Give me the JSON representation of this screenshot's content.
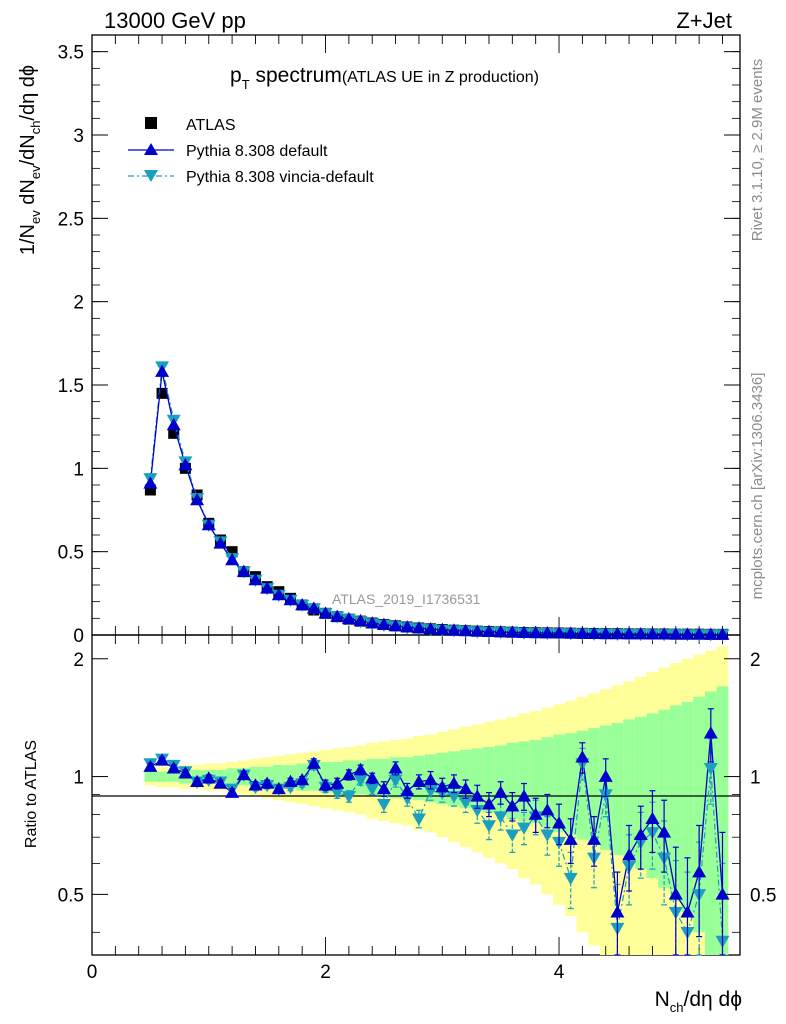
{
  "chart_data": [
    {
      "type": "scatter",
      "panel": "main",
      "header_left": "13000 GeV pp",
      "header_right": "Z+Jet",
      "title_main": "p",
      "title_sub": "T",
      "title_word": " spectrum",
      "title_paren": "(ATLAS UE in Z production)",
      "ylabel": "1/N_ev dN_ev/dN_ch/dη dϕ",
      "ylabel_parts": [
        "1/N",
        "ev",
        " dN",
        "ev",
        "/dN",
        "ch",
        "/dη dϕ"
      ],
      "ylim": [
        0,
        3.6
      ],
      "y_ticks": [
        "0",
        "0.5",
        "1",
        "1.5",
        "2",
        "2.5",
        "3",
        "3.5"
      ],
      "y_tick_values": [
        0,
        0.5,
        1,
        1.5,
        2,
        2.5,
        3,
        3.5
      ],
      "xlim": [
        0,
        5.55
      ],
      "analysis_label": "ATLAS_2019_I1736531",
      "right_label_top": "Rivet 3.1.10, ≥ 2.9M events",
      "right_label_bottom": "mcplots.cern.ch [arXiv:1306.3436]",
      "legend": [
        {
          "name": "ATLAS",
          "marker": "square",
          "color": "#000000"
        },
        {
          "name": "Pythia 8.308 default",
          "marker": "triangle-up",
          "color": "#0000cc"
        },
        {
          "name": "Pythia 8.308 vincia-default",
          "marker": "triangle-down",
          "color": "#1a9fbf"
        }
      ],
      "x": [
        0.5,
        0.6,
        0.7,
        0.8,
        0.9,
        1.0,
        1.1,
        1.2,
        1.3,
        1.4,
        1.5,
        1.6,
        1.7,
        1.8,
        1.9,
        2.0,
        2.1,
        2.2,
        2.3,
        2.4,
        2.5,
        2.6,
        2.7,
        2.8,
        2.9,
        3.0,
        3.1,
        3.2,
        3.3,
        3.4,
        3.5,
        3.6,
        3.7,
        3.8,
        3.9,
        4.0,
        4.1,
        4.2,
        4.3,
        4.4,
        4.5,
        4.6,
        4.7,
        4.8,
        4.9,
        5.0,
        5.1,
        5.2,
        5.3,
        5.4
      ],
      "series": [
        {
          "name": "ATLAS",
          "values": [
            0.87,
            1.45,
            1.21,
            1.0,
            0.84,
            0.67,
            0.57,
            0.5,
            0.38,
            0.35,
            0.29,
            0.26,
            0.22,
            0.18,
            0.15,
            0.13,
            0.11,
            0.095,
            0.083,
            0.072,
            0.063,
            0.055,
            0.048,
            0.042,
            0.037,
            0.033,
            0.029,
            0.026,
            0.023,
            0.021,
            0.019,
            0.017,
            0.015,
            0.014,
            0.013,
            0.012,
            0.011,
            0.01,
            0.009,
            0.008,
            0.008,
            0.007,
            0.007,
            0.006,
            0.006,
            0.005,
            0.005,
            0.005,
            0.004,
            0.004
          ]
        },
        {
          "name": "Pythia 8.308 default",
          "values": [
            0.91,
            1.58,
            1.26,
            1.02,
            0.81,
            0.66,
            0.55,
            0.45,
            0.38,
            0.33,
            0.28,
            0.24,
            0.21,
            0.18,
            0.16,
            0.13,
            0.11,
            0.097,
            0.085,
            0.071,
            0.062,
            0.054,
            0.047,
            0.041,
            0.036,
            0.032,
            0.028,
            0.025,
            0.022,
            0.02,
            0.018,
            0.016,
            0.014,
            0.013,
            0.012,
            0.011,
            0.01,
            0.009,
            0.008,
            0.007,
            0.007,
            0.006,
            0.006,
            0.005,
            0.005,
            0.004,
            0.004,
            0.004,
            0.003,
            0.003
          ]
        },
        {
          "name": "Pythia 8.308 vincia-default",
          "values": [
            0.94,
            1.61,
            1.29,
            1.04,
            0.82,
            0.66,
            0.56,
            0.46,
            0.38,
            0.33,
            0.28,
            0.24,
            0.21,
            0.18,
            0.16,
            0.13,
            0.11,
            0.095,
            0.082,
            0.069,
            0.06,
            0.052,
            0.045,
            0.039,
            0.034,
            0.03,
            0.027,
            0.024,
            0.021,
            0.019,
            0.017,
            0.015,
            0.013,
            0.012,
            0.011,
            0.01,
            0.009,
            0.008,
            0.007,
            0.006,
            0.006,
            0.005,
            0.005,
            0.004,
            0.004,
            0.004,
            0.003,
            0.003,
            0.003,
            0.003
          ]
        }
      ]
    },
    {
      "type": "scatter",
      "panel": "ratio",
      "ylabel": "Ratio to ATLAS",
      "xlabel": "N_ch/dη dϕ",
      "xlabel_parts": [
        "N",
        "ch",
        "/dη dϕ"
      ],
      "ylim": [
        0.35,
        2.3
      ],
      "xlim": [
        0,
        5.55
      ],
      "y_ticks": [
        "0.5",
        "1",
        "2"
      ],
      "y_tick_values": [
        0.5,
        1,
        2
      ],
      "x_ticks": [
        "0",
        "2",
        "4"
      ],
      "x_tick_values": [
        0,
        2,
        4
      ],
      "x": [
        0.5,
        0.6,
        0.7,
        0.8,
        0.9,
        1.0,
        1.1,
        1.2,
        1.3,
        1.4,
        1.5,
        1.6,
        1.7,
        1.8,
        1.9,
        2.0,
        2.1,
        2.2,
        2.3,
        2.4,
        2.5,
        2.6,
        2.7,
        2.8,
        2.9,
        3.0,
        3.1,
        3.2,
        3.3,
        3.4,
        3.5,
        3.6,
        3.7,
        3.8,
        3.9,
        4.0,
        4.1,
        4.2,
        4.3,
        4.4,
        4.5,
        4.6,
        4.7,
        4.8,
        4.9,
        5.0,
        5.1,
        5.2,
        5.3,
        5.4
      ],
      "band_inner": [
        0.03,
        0.03,
        0.03,
        0.04,
        0.04,
        0.04,
        0.04,
        0.05,
        0.05,
        0.06,
        0.06,
        0.07,
        0.07,
        0.08,
        0.08,
        0.09,
        0.09,
        0.1,
        0.1,
        0.11,
        0.11,
        0.12,
        0.12,
        0.13,
        0.14,
        0.15,
        0.16,
        0.17,
        0.18,
        0.19,
        0.2,
        0.22,
        0.23,
        0.24,
        0.26,
        0.28,
        0.29,
        0.31,
        0.33,
        0.35,
        0.37,
        0.4,
        0.42,
        0.45,
        0.48,
        0.52,
        0.55,
        0.6,
        0.65,
        0.7
      ],
      "band_outer": [
        0.05,
        0.06,
        0.06,
        0.07,
        0.07,
        0.08,
        0.08,
        0.09,
        0.1,
        0.11,
        0.12,
        0.13,
        0.14,
        0.15,
        0.16,
        0.17,
        0.18,
        0.19,
        0.2,
        0.22,
        0.23,
        0.24,
        0.25,
        0.27,
        0.28,
        0.3,
        0.32,
        0.34,
        0.36,
        0.38,
        0.4,
        0.42,
        0.45,
        0.47,
        0.5,
        0.53,
        0.56,
        0.6,
        0.63,
        0.67,
        0.71,
        0.75,
        0.8,
        0.85,
        0.9,
        0.95,
        1.0,
        1.05,
        1.1,
        1.15
      ],
      "series": [
        {
          "name": "Pythia 8.308 default",
          "values": [
            1.06,
            1.1,
            1.05,
            1.02,
            0.97,
            0.99,
            0.96,
            0.91,
            1.01,
            0.95,
            0.96,
            0.93,
            0.97,
            0.98,
            1.08,
            0.95,
            0.96,
            1.01,
            1.04,
            0.99,
            0.93,
            1.05,
            0.92,
            0.97,
            0.98,
            0.94,
            0.96,
            0.93,
            0.89,
            0.85,
            0.91,
            0.84,
            0.89,
            0.8,
            0.82,
            0.76,
            0.69,
            1.12,
            0.69,
            1.0,
            0.45,
            0.63,
            0.71,
            0.78,
            0.72,
            0.5,
            0.45,
            0.57,
            1.29,
            0.5
          ],
          "errors": [
            0.02,
            0.02,
            0.02,
            0.02,
            0.02,
            0.02,
            0.02,
            0.02,
            0.02,
            0.02,
            0.02,
            0.02,
            0.02,
            0.02,
            0.03,
            0.03,
            0.03,
            0.03,
            0.03,
            0.03,
            0.04,
            0.04,
            0.04,
            0.04,
            0.05,
            0.05,
            0.05,
            0.05,
            0.06,
            0.06,
            0.06,
            0.07,
            0.07,
            0.08,
            0.08,
            0.09,
            0.09,
            0.1,
            0.1,
            0.11,
            0.12,
            0.12,
            0.13,
            0.14,
            0.15,
            0.16,
            0.17,
            0.18,
            0.2,
            0.22
          ]
        },
        {
          "name": "Pythia 8.308 vincia-default",
          "values": [
            1.08,
            1.11,
            1.07,
            1.03,
            0.97,
            0.98,
            0.97,
            0.93,
            1.01,
            0.94,
            0.95,
            0.93,
            0.94,
            0.96,
            1.07,
            0.94,
            0.91,
            0.89,
            0.98,
            0.93,
            0.85,
            0.98,
            0.88,
            0.78,
            0.92,
            0.91,
            0.89,
            0.86,
            0.82,
            0.75,
            0.79,
            0.71,
            0.74,
            0.79,
            0.71,
            0.68,
            0.55,
            1.08,
            0.62,
            0.9,
            0.41,
            0.59,
            0.68,
            0.72,
            0.62,
            0.45,
            0.4,
            0.5,
            1.05,
            0.38
          ],
          "errors": [
            0.02,
            0.02,
            0.02,
            0.02,
            0.02,
            0.02,
            0.02,
            0.02,
            0.02,
            0.02,
            0.02,
            0.02,
            0.02,
            0.02,
            0.03,
            0.03,
            0.03,
            0.03,
            0.03,
            0.03,
            0.04,
            0.04,
            0.04,
            0.04,
            0.05,
            0.05,
            0.05,
            0.05,
            0.06,
            0.06,
            0.06,
            0.07,
            0.07,
            0.08,
            0.08,
            0.09,
            0.09,
            0.1,
            0.1,
            0.11,
            0.12,
            0.12,
            0.13,
            0.14,
            0.15,
            0.16,
            0.17,
            0.18,
            0.2,
            0.22
          ]
        }
      ]
    }
  ]
}
